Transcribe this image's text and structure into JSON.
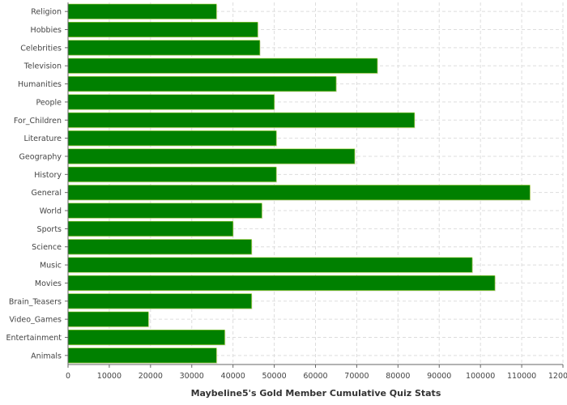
{
  "chart_data": {
    "type": "bar",
    "orientation": "horizontal",
    "categories": [
      "Religion",
      "Hobbies",
      "Celebrities",
      "Television",
      "Humanities",
      "People",
      "For_Children",
      "Literature",
      "Geography",
      "History",
      "General",
      "World",
      "Sports",
      "Science",
      "Music",
      "Movies",
      "Brain_Teasers",
      "Video_Games",
      "Entertainment",
      "Animals"
    ],
    "values": [
      36000,
      46000,
      46500,
      75000,
      65000,
      50000,
      84000,
      50500,
      69500,
      50500,
      112000,
      47000,
      40000,
      44500,
      98000,
      103500,
      44500,
      19500,
      38000,
      36000
    ],
    "title": "",
    "xlabel": "Maybeline5's Gold Member Cumulative Quiz Stats",
    "ylabel": "",
    "xlim": [
      0,
      120000
    ],
    "x_ticks": [
      0,
      10000,
      20000,
      30000,
      40000,
      50000,
      60000,
      70000,
      80000,
      90000,
      100000,
      110000,
      120000
    ],
    "grid": true,
    "legend": "none",
    "bar_color": "#008000",
    "bar_edge_color": "#9acd32",
    "grid_color": "#dddddd",
    "axis_color": "#666666"
  }
}
